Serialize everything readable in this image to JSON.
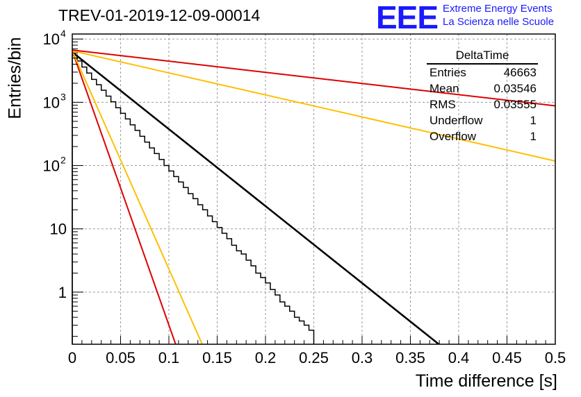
{
  "chart_data": {
    "type": "line",
    "title": "TREV-01-2019-12-09-00014",
    "xlabel": "Time difference [s]",
    "ylabel": "Entries/bin",
    "xlim": [
      0,
      0.5
    ],
    "ylim": [
      0.15,
      12000
    ],
    "yscale": "log",
    "grid": true,
    "xticks": [
      "0",
      "0.05",
      "0.1",
      "0.15",
      "0.2",
      "0.25",
      "0.3",
      "0.35",
      "0.4",
      "0.45",
      "0.5"
    ],
    "yticks": [
      {
        "value": 1,
        "label": "1"
      },
      {
        "value": 10,
        "label": "10"
      },
      {
        "value": 100,
        "label": "10",
        "exp": "2"
      },
      {
        "value": 1000,
        "label": "10",
        "exp": "3"
      },
      {
        "value": 10000,
        "label": "10",
        "exp": "4"
      }
    ],
    "fit_lines": [
      {
        "color": "#000000",
        "points": [
          [
            0,
            6200
          ],
          [
            0.3795,
            0.15
          ]
        ]
      },
      {
        "color": "#dd0000",
        "points": [
          [
            0,
            6500
          ],
          [
            0.107,
            0.15
          ]
        ]
      },
      {
        "color": "#ffbf00",
        "points": [
          [
            0,
            6500
          ],
          [
            0.1345,
            0.15
          ]
        ]
      },
      {
        "color": "#ffbf00",
        "points": [
          [
            0,
            6500
          ],
          [
            0.5,
            118
          ]
        ]
      },
      {
        "color": "#dd0000",
        "points": [
          [
            0,
            6700
          ],
          [
            0.5,
            880
          ]
        ]
      }
    ],
    "histogram": {
      "bin_width": 0.005,
      "counts": [
        5600,
        4500,
        3600,
        2900,
        2300,
        1900,
        1550,
        1250,
        1020,
        820,
        670,
        545,
        440,
        360,
        290,
        235,
        190,
        155,
        125,
        100,
        82,
        67,
        55,
        45,
        36,
        30,
        24,
        20,
        16,
        13,
        10.5,
        8.5,
        7,
        5.5,
        4.5,
        4,
        3.2,
        2.6,
        2,
        1.7,
        1.4,
        1.1,
        0.9,
        0.7,
        0.6,
        0.5,
        0.4,
        0.35,
        0.3,
        0.25
      ]
    }
  },
  "header": {
    "title": "TREV-01-2019-12-09-00014",
    "logo": "EEE",
    "logo_line1": "Extreme Energy Events",
    "logo_line2": "La Scienza nelle Scuole"
  },
  "stats": {
    "name": "DeltaTime",
    "rows": [
      {
        "label": "Entries",
        "value": "46663"
      },
      {
        "label": "Mean",
        "value": "0.03546"
      },
      {
        "label": "RMS",
        "value": "0.03555"
      },
      {
        "label": "Underflow",
        "value": "1"
      },
      {
        "label": "Overflow",
        "value": "1"
      }
    ]
  }
}
